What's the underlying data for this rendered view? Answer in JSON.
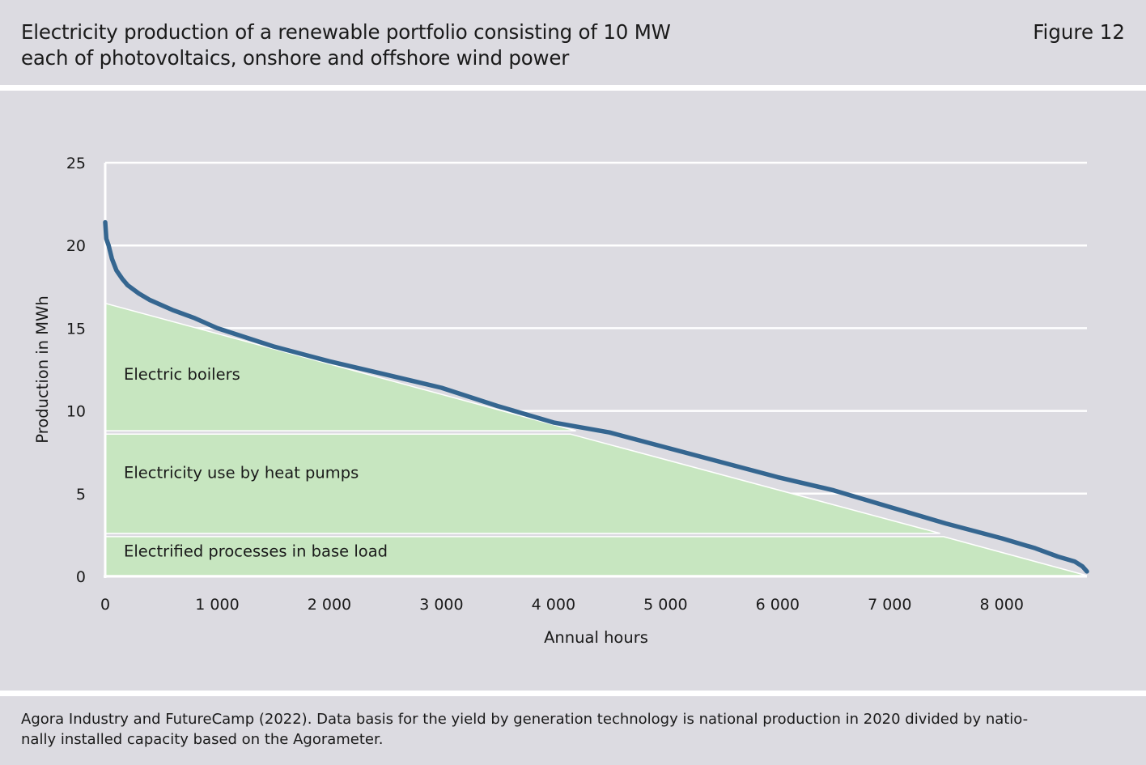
{
  "header": {
    "title": "Electricity production of a renewable portfolio consisting of 10 MW\neach of photovoltaics, onshore and offshore wind power",
    "figure_label": "Figure 12"
  },
  "footer": {
    "source": "Agora Industry and FutureCamp (2022). Data basis for the yield by generation technology is national production in 2020 divided by natio-\nnally installed capacity based on the Agorameter."
  },
  "colors": {
    "background": "#dcdbe1",
    "line": "#356690",
    "area_fill": "#c7e6c0",
    "grid": "#ffffff",
    "text": "#1a1a1a"
  },
  "chart_data": {
    "type": "line",
    "xlabel": "Annual hours",
    "ylabel": "Production in MWh",
    "xlim": [
      0,
      8760
    ],
    "ylim": [
      0,
      25
    ],
    "x_ticks": [
      0,
      1000,
      2000,
      3000,
      4000,
      5000,
      6000,
      7000,
      8000
    ],
    "x_tick_labels": [
      "0",
      "1 000",
      "2 000",
      "3 000",
      "4 000",
      "5 000",
      "6 000",
      "7 000",
      "8 000"
    ],
    "y_ticks": [
      0,
      5,
      10,
      15,
      20,
      25
    ],
    "y_tick_labels": [
      "0",
      "5",
      "10",
      "15",
      "20",
      "25"
    ],
    "grid": true,
    "series": [
      {
        "x": [
          0,
          10,
          30,
          60,
          100,
          150,
          200,
          300,
          400,
          600,
          800,
          1000,
          1500,
          2000,
          2500,
          3000,
          3500,
          4000,
          4500,
          5000,
          5500,
          6000,
          6500,
          7000,
          7500,
          8000,
          8300,
          8500,
          8650,
          8720,
          8760
        ],
        "values": [
          21.4,
          20.4,
          20.0,
          19.2,
          18.5,
          18.0,
          17.6,
          17.1,
          16.7,
          16.1,
          15.6,
          15.0,
          13.9,
          13.0,
          12.2,
          11.4,
          10.3,
          9.3,
          8.7,
          7.8,
          6.9,
          6.0,
          5.2,
          4.2,
          3.2,
          2.3,
          1.7,
          1.2,
          0.9,
          0.6,
          0.3
        ]
      }
    ],
    "areas": [
      {
        "label": "Electric boilers",
        "polygon": [
          [
            0,
            16.5
          ],
          [
            4200,
            8.8
          ],
          [
            0,
            8.8
          ]
        ]
      },
      {
        "label": "Electricity use by heat pumps",
        "polygon": [
          [
            0,
            8.6
          ],
          [
            4150,
            8.6
          ],
          [
            7450,
            2.6
          ],
          [
            0,
            2.6
          ]
        ]
      },
      {
        "label": "Electrified processes in base load",
        "polygon": [
          [
            0,
            2.4
          ],
          [
            7480,
            2.4
          ],
          [
            8760,
            0.05
          ],
          [
            0,
            0.05
          ]
        ]
      }
    ]
  }
}
